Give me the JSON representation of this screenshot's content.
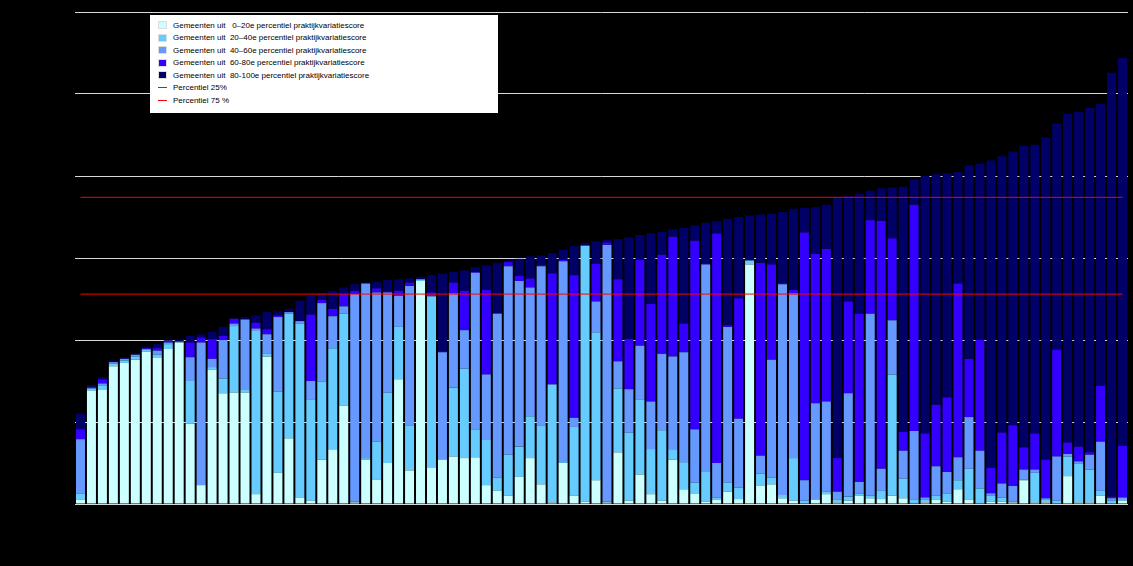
{
  "chart_data": {
    "type": "bar",
    "stacked": true,
    "grid": true,
    "legend": "upper left",
    "tick_labels": false,
    "ylim": [
      0,
      60
    ],
    "yticks": [
      0,
      10,
      20,
      30,
      40,
      50,
      60
    ],
    "categories": [
      null,
      null,
      null,
      null,
      null,
      null,
      null,
      null,
      null,
      null,
      null,
      null,
      null,
      null,
      null,
      null,
      null,
      null,
      null,
      null,
      null,
      null,
      null,
      null,
      null,
      null,
      null,
      null,
      null,
      null,
      null,
      null,
      null,
      null,
      null,
      null,
      null,
      null,
      null,
      null,
      null,
      null,
      null,
      null,
      null,
      null,
      null,
      null,
      null,
      null,
      null,
      null,
      null,
      null,
      null,
      null,
      null,
      null,
      null,
      null,
      null,
      null,
      null,
      null,
      null,
      null,
      null,
      null,
      null,
      null,
      null,
      null,
      null,
      null,
      null,
      null,
      null,
      null,
      null,
      null,
      null,
      null,
      null,
      null,
      null,
      null,
      null,
      null,
      null,
      null,
      null,
      null,
      null,
      null,
      null,
      null
    ],
    "series": [
      {
        "name": "Gemeenten uit   0–20e percentiel praktijkvariatiescore",
        "color": "#ccffff",
        "values": [
          0.5,
          13.8,
          13.9,
          16.8,
          17.2,
          17.6,
          18.6,
          17.8,
          18.9,
          19.7,
          9.8,
          2.3,
          16.4,
          13.5,
          13.6,
          13.6,
          1.2,
          18.0,
          3.8,
          8.0,
          0.8,
          0.4,
          5.4,
          6.6,
          12.0,
          0.2,
          5.4,
          3.0,
          5.0,
          15.2,
          4.1,
          27.2,
          4.4,
          5.4,
          5.8,
          5.6,
          5.7,
          2.3,
          1.6,
          1.0,
          3.3,
          5.6,
          2.4,
          0.2,
          5.0,
          1.0,
          0.3,
          2.9,
          0.2,
          6.3,
          0.4,
          3.6,
          1.2,
          0.4,
          5.4,
          1.8,
          1.3,
          0.3,
          0.5,
          1.5,
          0.6,
          29.2,
          2.2,
          2.4,
          0.7,
          0.4,
          0.1,
          0.5,
          1.2,
          0.2,
          0.4,
          1.0,
          0.7,
          0.6,
          1.0,
          0.7,
          0.1,
          0.2,
          0.5,
          0.3,
          1.8,
          0.5,
          0.1,
          0.3,
          0.3,
          0.2,
          2.9,
          0.2,
          0.2,
          0.1,
          3.4,
          0.2,
          0.2,
          1.0,
          0.1,
          0.4
        ]
      },
      {
        "name": "Gemeenten uit  20–40e percentiel praktijkvariatiescore",
        "color": "#66ccff",
        "values": [
          0.8,
          0.3,
          0.5,
          0.3,
          0.3,
          0.4,
          0.2,
          0.4,
          0.6,
          0.1,
          5.2,
          0,
          0.3,
          1.8,
          8.1,
          0.3,
          19.9,
          0.3,
          9.9,
          15.2,
          21.2,
          12.3,
          9.5,
          12.4,
          11.2,
          0.1,
          0.2,
          4.6,
          8.6,
          6.4,
          5.5,
          0.2,
          20.9,
          0.1,
          8.4,
          10.9,
          3.4,
          5.6,
          1.6,
          5.0,
          3.7,
          5.1,
          7.2,
          14.3,
          0.1,
          8.4,
          31.2,
          18.0,
          0.1,
          7.8,
          8.3,
          9.1,
          5.5,
          8.6,
          1.2,
          3.3,
          1.3,
          3.6,
          0.3,
          1.1,
          1.4,
          0.5,
          1.5,
          0.8,
          0.4,
          5.2,
          0.3,
          0.1,
          0.3,
          0.3,
          0.5,
          0.3,
          0.3,
          1.0,
          14.8,
          2.4,
          0.4,
          0.3,
          0.5,
          1.0,
          1.1,
          3.8,
          1.8,
          0.7,
          0.5,
          0.1,
          0.1,
          3.6,
          0.3,
          0.3,
          2.4,
          4.7,
          4.0,
          0.6,
          0.3,
          0.2
        ]
      },
      {
        "name": "Gemeenten uit  40–60e percentiel praktijkvariatiescore",
        "color": "#6699ff",
        "values": [
          6.6,
          0,
          0.3,
          0.2,
          0.2,
          0.2,
          0.1,
          0.5,
          0.2,
          0,
          2.9,
          17.4,
          1.0,
          4.7,
          0.3,
          8.6,
          0.3,
          2.4,
          9.1,
          0.2,
          0.3,
          2.3,
          9.6,
          3.9,
          0.9,
          25.3,
          21.3,
          18.2,
          12.2,
          3.8,
          17.0,
          0,
          0.1,
          13.0,
          11.5,
          4.7,
          19.1,
          7.9,
          20.0,
          23.0,
          20.2,
          15.7,
          19.4,
          0.1,
          24.5,
          1.1,
          0,
          3.8,
          31.3,
          3.3,
          5.3,
          6.6,
          5.8,
          9.3,
          11.4,
          13.4,
          6.5,
          25.3,
          4.2,
          19.0,
          8.4,
          0,
          2.2,
          14.4,
          25.7,
          20.1,
          2.5,
          11.7,
          11.0,
          1.0,
          12.6,
          1.4,
          22.2,
          2.7,
          6.6,
          3.4,
          8.4,
          0.3,
          3.6,
          2.6,
          2.8,
          6.3,
          4.6,
          0.3,
          1.7,
          1.9,
          1.2,
          0.4,
          0.2,
          5.4,
          0.3,
          0.3,
          1.8,
          6.0,
          0.3,
          0.2
        ]
      },
      {
        "name": "Gemeenten uit  60-80e percentiel praktijkvariatiescore",
        "color": "#3300ff",
        "values": [
          1.2,
          0.2,
          0.5,
          0,
          0,
          0,
          0.1,
          0.3,
          0.2,
          0,
          1.8,
          0.6,
          2.4,
          0.5,
          0.6,
          0,
          0.7,
          0.6,
          0.2,
          0,
          0,
          8.1,
          0.4,
          0.9,
          1.5,
          0.4,
          0,
          0.5,
          0.1,
          0.6,
          0.4,
          0,
          0.4,
          0.1,
          1.3,
          4.8,
          0.1,
          10.3,
          0.1,
          0.5,
          0.6,
          1.1,
          0.1,
          13.5,
          0.2,
          17.4,
          0.1,
          4.6,
          0.3,
          10.0,
          6.1,
          10.5,
          11.9,
          12.1,
          14.6,
          3.5,
          23.0,
          0.1,
          28.0,
          0.2,
          14.7,
          0,
          23.5,
          11.6,
          0.1,
          0.4,
          30.2,
          18.2,
          18.6,
          4.1,
          11.2,
          20.5,
          11.4,
          30.2,
          10.0,
          2.3,
          27.6,
          7.8,
          7.5,
          9.1,
          21.2,
          7.1,
          13.5,
          3.1,
          6.2,
          7.4,
          2.7,
          4.4,
          4.7,
          13.0,
          1.4,
          1.8,
          0.3,
          6.8,
          0.2,
          6.3
        ]
      },
      {
        "name": "Gemeenten uit  80-100e percentiel praktijkvariatiescore",
        "color": "#000066",
        "values": [
          1.9,
          0.2,
          0.3,
          0.2,
          0.2,
          0.2,
          0.2,
          0.5,
          0.1,
          0.3,
          0.8,
          0.4,
          0.9,
          1.1,
          0,
          0.3,
          0.9,
          2.1,
          0.5,
          0.4,
          2.5,
          2.3,
          0.8,
          2.2,
          0.8,
          0.8,
          0.1,
          0.8,
          1.4,
          1.4,
          0.5,
          0.3,
          2.1,
          9.5,
          1.3,
          2.5,
          0.6,
          3.0,
          6.1,
          0.2,
          2.1,
          2.7,
          1.2,
          2.5,
          1.2,
          3.6,
          0.2,
          2.7,
          0.3,
          4.9,
          12.4,
          3.0,
          8.6,
          2.8,
          0.9,
          11.7,
          1.9,
          5.0,
          1.5,
          13.0,
          9.9,
          5.5,
          5.9,
          6.2,
          8.7,
          9.9,
          3.0,
          5.7,
          5.4,
          31.8,
          12.9,
          14.6,
          3.6,
          4.0,
          6.2,
          29.9,
          3.1,
          31.4,
          28.1,
          27.3,
          13.6,
          23.6,
          21.5,
          37.5,
          33.7,
          33.4,
          36.8,
          35.2,
          39.3,
          27.6,
          40.1,
          40.8,
          42.0,
          34.4,
          51.7,
          47.3
        ]
      },
      {
        "name": "Percentiel 25%",
        "type": "line",
        "color": "#ff0000",
        "line_style": "solid",
        "values": [
          25.6,
          25.6,
          25.6,
          25.6,
          25.6,
          25.6,
          25.6,
          25.6,
          25.6,
          25.6,
          25.6,
          25.6,
          25.6,
          25.6,
          25.6,
          25.6,
          25.6,
          25.6,
          25.6,
          25.6,
          25.6,
          25.6,
          25.6,
          25.6,
          25.6,
          25.6,
          25.6,
          25.6,
          25.6,
          25.6,
          25.6,
          25.6,
          25.6,
          25.6,
          25.6,
          25.6,
          25.6,
          25.6,
          25.6,
          25.6,
          25.6,
          25.6,
          25.6,
          25.6,
          25.6,
          25.6,
          25.6,
          25.6,
          25.6,
          25.6,
          25.6,
          25.6,
          25.6,
          25.6,
          25.6,
          25.6,
          25.6,
          25.6,
          25.6,
          25.6,
          25.6,
          25.6,
          25.6,
          25.6,
          25.6,
          25.6,
          25.6,
          25.6,
          25.6,
          25.6,
          25.6,
          25.6,
          25.6,
          25.6,
          25.6,
          25.6,
          25.6,
          25.6,
          25.6,
          25.6,
          25.6,
          25.6,
          25.6,
          25.6,
          25.6,
          25.6,
          25.6,
          25.6,
          25.6,
          25.6,
          25.6,
          25.6,
          25.6,
          25.6,
          25.6,
          25.6
        ]
      },
      {
        "name": "Percentiel 75 %",
        "type": "line",
        "color": "#ff0000",
        "line_style": "solid",
        "values": [
          37.4,
          37.4,
          37.4,
          37.4,
          37.4,
          37.4,
          37.4,
          37.4,
          37.4,
          37.4,
          37.4,
          37.4,
          37.4,
          37.4,
          37.4,
          37.4,
          37.4,
          37.4,
          37.4,
          37.4,
          37.4,
          37.4,
          37.4,
          37.4,
          37.4,
          37.4,
          37.4,
          37.4,
          37.4,
          37.4,
          37.4,
          37.4,
          37.4,
          37.4,
          37.4,
          37.4,
          37.4,
          37.4,
          37.4,
          37.4,
          37.4,
          37.4,
          37.4,
          37.4,
          37.4,
          37.4,
          37.4,
          37.4,
          37.4,
          37.4,
          37.4,
          37.4,
          37.4,
          37.4,
          37.4,
          37.4,
          37.4,
          37.4,
          37.4,
          37.4,
          37.4,
          37.4,
          37.4,
          37.4,
          37.4,
          37.4,
          37.4,
          37.4,
          37.4,
          37.4,
          37.4,
          37.4,
          37.4,
          37.4,
          37.4,
          37.4,
          37.4,
          37.4,
          37.4,
          37.4,
          37.4,
          37.4,
          37.4,
          37.4,
          37.4,
          37.4,
          37.4,
          37.4,
          37.4,
          37.4,
          37.4,
          37.4,
          37.4,
          37.4,
          37.4,
          37.4
        ]
      }
    ]
  }
}
